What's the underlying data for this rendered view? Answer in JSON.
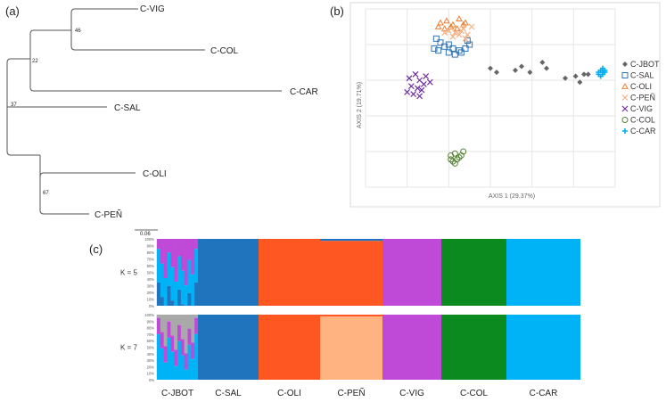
{
  "panels": {
    "a": "(a)",
    "b": "(b)",
    "c": "(c)"
  },
  "chart_data": [
    {
      "type": "tree",
      "panel": "(a)",
      "scale_bar": "0.06",
      "taxa": [
        "C-VIG",
        "C-COL",
        "C-CAR",
        "C-SAL",
        "C-OLI",
        "C-PEÑ"
      ],
      "bootstrap": [
        {
          "node": "C-VIG+C-COL",
          "value": "46"
        },
        {
          "node": "(C-VIG+C-COL)+C-CAR",
          "value": "22"
        },
        {
          "node": "root",
          "value": "37"
        },
        {
          "node": "C-OLI+C-PEÑ",
          "value": "67"
        }
      ]
    },
    {
      "type": "scatter",
      "panel": "(b)",
      "xlabel": "AXIS 1 (29.37%)",
      "ylabel": "AXIS 2 (19.71%)",
      "xlim": [
        -0.6,
        0.6
      ],
      "ylim": [
        -0.5,
        0.4
      ],
      "legend_position": "right",
      "series": [
        {
          "name": "C-JBOT",
          "marker": "diamond",
          "color": "#666666",
          "x": [
            0.0,
            0.03,
            0.12,
            0.15,
            0.19,
            0.25,
            0.27,
            0.36,
            0.41,
            0.45,
            0.47,
            0.43
          ],
          "y": [
            0.1,
            0.08,
            0.09,
            0.11,
            0.08,
            0.13,
            0.1,
            0.05,
            0.06,
            0.07,
            0.07,
            0.03
          ]
        },
        {
          "name": "C-SAL",
          "marker": "square",
          "color": "#2e75b6",
          "x": [
            -0.27,
            -0.25,
            -0.22,
            -0.2,
            -0.18,
            -0.15,
            -0.12,
            -0.1,
            -0.24,
            -0.2,
            -0.14,
            -0.17,
            -0.26,
            -0.11
          ],
          "y": [
            0.2,
            0.19,
            0.21,
            0.18,
            0.2,
            0.19,
            0.2,
            0.22,
            0.23,
            0.22,
            0.18,
            0.17,
            0.25,
            0.24
          ]
        },
        {
          "name": "C-OLI",
          "marker": "triangle",
          "color": "#ed7d31",
          "x": [
            -0.24,
            -0.21,
            -0.18,
            -0.15,
            -0.12,
            -0.22,
            -0.19,
            -0.16,
            -0.13,
            -0.25
          ],
          "y": [
            0.33,
            0.34,
            0.32,
            0.35,
            0.33,
            0.3,
            0.31,
            0.3,
            0.32,
            0.31
          ]
        },
        {
          "name": "C-PEÑ",
          "marker": "x",
          "color": "#f4b183",
          "x": [
            -0.2,
            -0.17,
            -0.14,
            -0.11,
            -0.09,
            -0.18,
            -0.15,
            -0.12,
            -0.22,
            -0.13
          ],
          "y": [
            0.29,
            0.28,
            0.29,
            0.27,
            0.31,
            0.26,
            0.27,
            0.25,
            0.28,
            0.3
          ]
        },
        {
          "name": "C-VIG",
          "marker": "x",
          "color": "#7030a0",
          "x": [
            -0.39,
            -0.36,
            -0.34,
            -0.31,
            -0.38,
            -0.35,
            -0.32,
            -0.29,
            -0.37,
            -0.34,
            -0.4,
            -0.33
          ],
          "y": [
            0.05,
            0.07,
            0.04,
            0.06,
            0.01,
            0.0,
            0.02,
            0.03,
            -0.03,
            -0.04,
            -0.02,
            -0.01
          ]
        },
        {
          "name": "C-COL",
          "marker": "circle",
          "color": "#548235",
          "x": [
            -0.19,
            -0.17,
            -0.15,
            -0.16,
            -0.18,
            -0.14,
            -0.17,
            -0.19,
            -0.13
          ],
          "y": [
            -0.34,
            -0.33,
            -0.35,
            -0.36,
            -0.37,
            -0.34,
            -0.38,
            -0.36,
            -0.32
          ]
        },
        {
          "name": "C-CAR",
          "marker": "plus",
          "color": "#00b0f0",
          "x": [
            0.52,
            0.53,
            0.54,
            0.55,
            0.53,
            0.54,
            0.52,
            0.55,
            0.54
          ],
          "y": [
            0.08,
            0.09,
            0.07,
            0.08,
            0.06,
            0.1,
            0.07,
            0.09,
            0.08
          ]
        }
      ]
    },
    {
      "type": "bar",
      "subtype": "stacked-structure",
      "panel": "(c)",
      "ylim": [
        0,
        100
      ],
      "yticks": [
        "100%",
        "90%",
        "80%",
        "70%",
        "60%",
        "50%",
        "40%",
        "30%",
        "20%",
        "10%",
        "0%"
      ],
      "categories": [
        "C-JBOT",
        "C-SAL",
        "C-OLI",
        "C-PEÑ",
        "C-VIG",
        "C-COL",
        "C-CAR"
      ],
      "cluster_colors": {
        "violet": "#c04ad8",
        "blue": "#1f74bd",
        "orange": "#ff5722",
        "peach": "#ffb380",
        "green": "#0a8a1f",
        "cyan": "#00b2f6",
        "grey": "#a9a9a9"
      },
      "rows": [
        {
          "label": "K = 5",
          "groups": [
            {
              "category": "C-JBOT",
              "mix": {
                "violet": 45,
                "cyan": 50,
                "blue": 5
              }
            },
            {
              "category": "C-SAL",
              "mix": {
                "blue": 100
              }
            },
            {
              "category": "C-OLI",
              "mix": {
                "orange": 100
              }
            },
            {
              "category": "C-PEÑ",
              "mix": {
                "orange": 97,
                "blue": 3
              }
            },
            {
              "category": "C-VIG",
              "mix": {
                "violet": 100
              }
            },
            {
              "category": "C-COL",
              "mix": {
                "green": 100
              }
            },
            {
              "category": "C-CAR",
              "mix": {
                "cyan": 100
              }
            }
          ]
        },
        {
          "label": "K = 7",
          "groups": [
            {
              "category": "C-JBOT",
              "mix": {
                "grey": 35,
                "cyan": 40,
                "violet": 25
              }
            },
            {
              "category": "C-SAL",
              "mix": {
                "blue": 100
              }
            },
            {
              "category": "C-OLI",
              "mix": {
                "orange": 100
              }
            },
            {
              "category": "C-PEÑ",
              "mix": {
                "peach": 97,
                "orange": 3
              }
            },
            {
              "category": "C-VIG",
              "mix": {
                "violet": 100
              }
            },
            {
              "category": "C-COL",
              "mix": {
                "green": 100
              }
            },
            {
              "category": "C-CAR",
              "mix": {
                "cyan": 100
              }
            }
          ]
        }
      ]
    }
  ]
}
